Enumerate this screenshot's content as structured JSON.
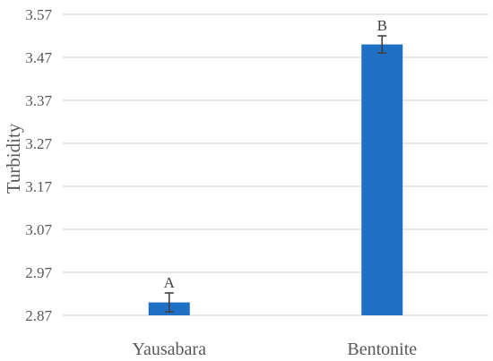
{
  "chart_data": {
    "type": "bar",
    "ylabel": "Turbidity",
    "categories": [
      "Yausabara",
      "Bentonite"
    ],
    "values": [
      2.9,
      3.5
    ],
    "errors": [
      0.022,
      0.02
    ],
    "significance_labels": [
      "A",
      "B"
    ],
    "ylim": [
      2.87,
      3.57
    ],
    "yticks": [
      "2.87",
      "2.97",
      "3.07",
      "3.17",
      "3.27",
      "3.37",
      "3.47",
      "3.57"
    ],
    "grid": true,
    "bar_color": "#1f6fc5",
    "error_bar_color": "#404040",
    "grid_color": "#d9d9d9"
  }
}
